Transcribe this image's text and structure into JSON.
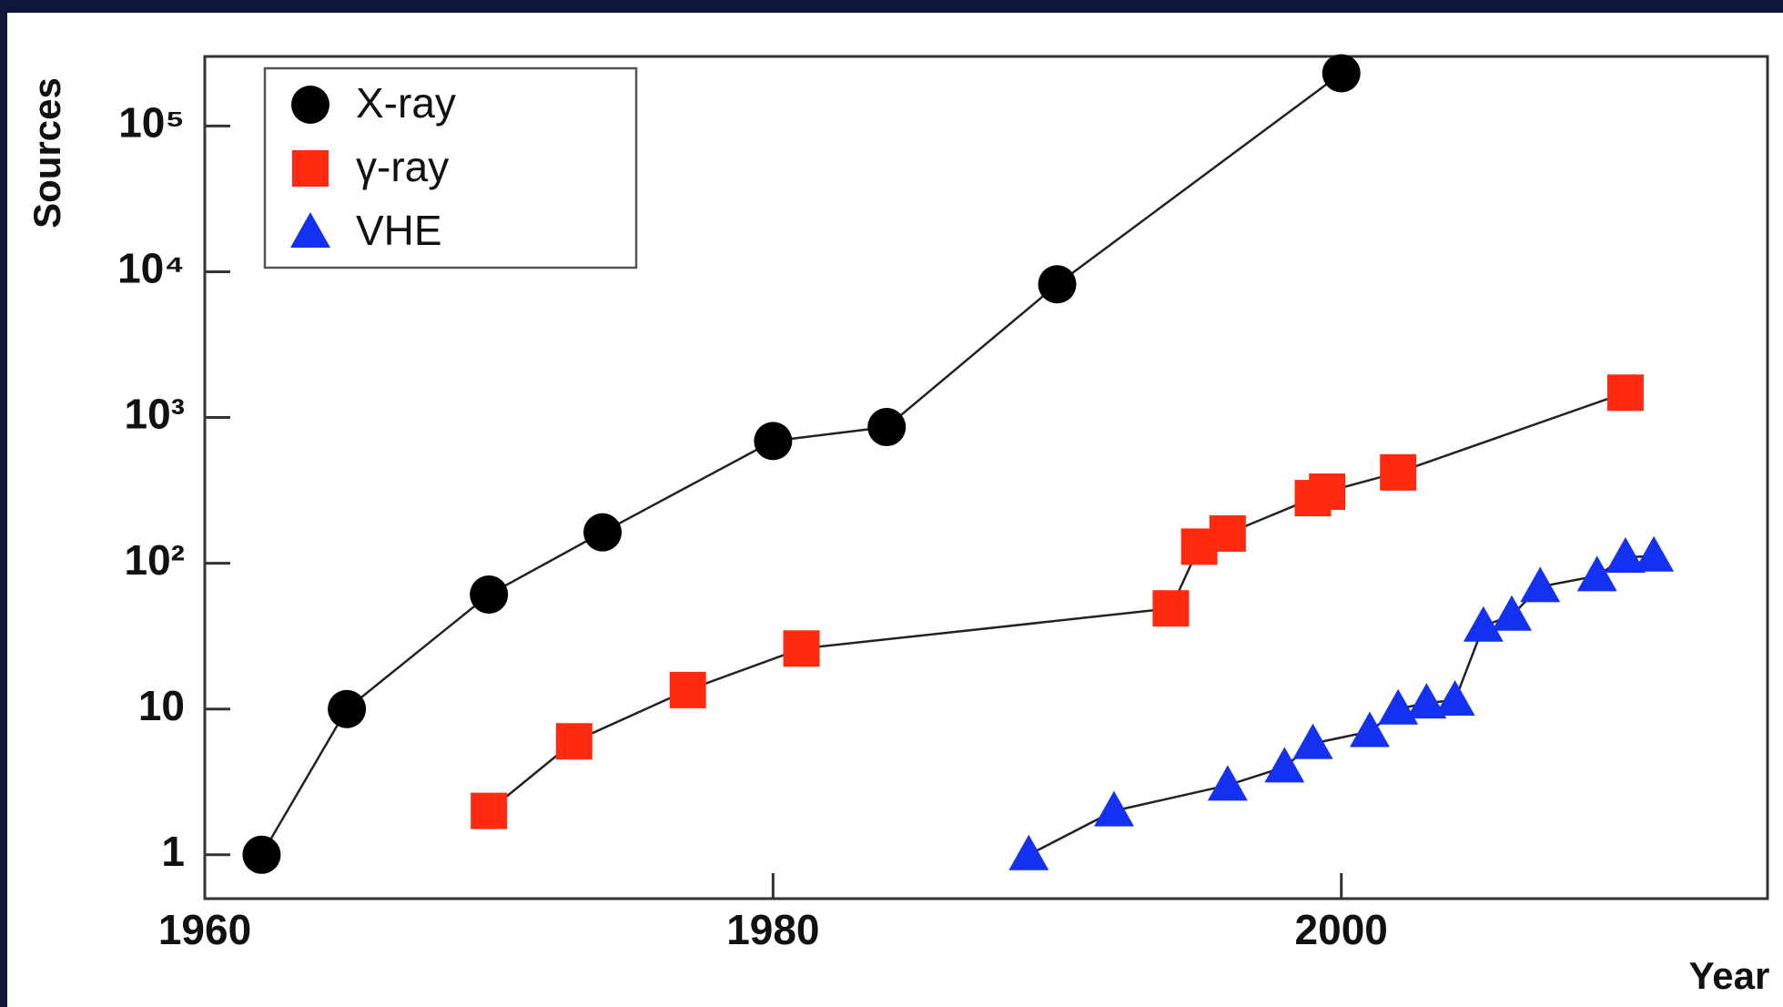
{
  "chart_data": {
    "type": "scatter",
    "x_label": "Year",
    "y_label": "Sources",
    "log_y": true,
    "xlim": [
      1960,
      2015
    ],
    "xticks": [
      1960,
      1980,
      2000
    ],
    "ylim": [
      0.5,
      300000
    ],
    "yticks": [
      1,
      10,
      {
        "value": 100,
        "label": "10²"
      },
      {
        "value": 1000,
        "label": "10³"
      },
      {
        "value": 10000,
        "label": "10⁴"
      },
      {
        "value": 100000,
        "label": "10⁵"
      }
    ],
    "legend": "top-left",
    "series": [
      {
        "name": "X-ray",
        "color": "#000000",
        "marker": "circle",
        "x": [
          1962,
          1965,
          1970,
          1974,
          1980,
          1984,
          1990,
          2000
        ],
        "values": [
          1,
          10,
          61,
          163,
          690,
          860,
          8200,
          230000
        ]
      },
      {
        "name": "γ-ray",
        "color": "#ff2a10",
        "marker": "square",
        "x": [
          1970,
          1973,
          1977,
          1981,
          1994,
          1995,
          1996,
          1999,
          1999.5,
          2002,
          2010
        ],
        "values": [
          2,
          6,
          13.5,
          26,
          49,
          130,
          160,
          280,
          310,
          420,
          1480
        ]
      },
      {
        "name": "VHE",
        "color": "#1430f0",
        "marker": "triangle",
        "x": [
          1989,
          1992,
          1996,
          1998,
          1999,
          2001,
          2002,
          2003,
          2004,
          2005,
          2006,
          2007,
          2009,
          2010,
          2011
        ],
        "values": [
          1,
          2,
          3,
          4,
          5.8,
          7,
          10,
          11,
          11.5,
          37,
          44,
          69,
          82,
          110,
          112
        ]
      }
    ]
  }
}
